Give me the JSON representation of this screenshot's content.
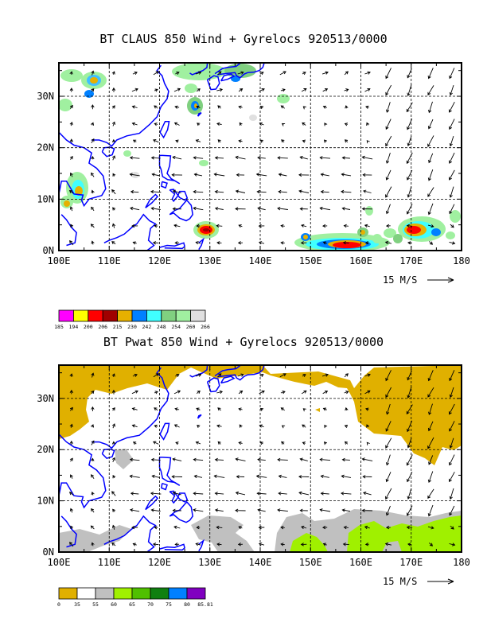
{
  "panels": [
    {
      "id": "top",
      "title": "BT CLAUS 850 Wind + Gyrelocs 920513/0000",
      "lat_labels": [
        "0N",
        "10N",
        "20N",
        "30N"
      ],
      "lon_labels": [
        "100E",
        "110E",
        "120E",
        "130E",
        "140E",
        "150E",
        "160E",
        "170E",
        "180"
      ],
      "reference_vector": "15 M/S",
      "colorbar": {
        "labels": [
          "185",
          "194",
          "200",
          "206",
          "215",
          "230",
          "242",
          "248",
          "254",
          "260",
          "266"
        ],
        "colors": [
          "#ff00ff",
          "#ffff00",
          "#ff0000",
          "#a00000",
          "#e6b000",
          "#0080ff",
          "#40ffff",
          "#80d080",
          "#a0f0a0",
          "#e0e0e0"
        ]
      }
    },
    {
      "id": "bottom",
      "title": "BT Pwat 850 Wind + Gyrelocs 920513/0000",
      "lat_labels": [
        "0N",
        "10N",
        "20N",
        "30N"
      ],
      "lon_labels": [
        "100E",
        "110E",
        "120E",
        "130E",
        "140E",
        "150E",
        "160E",
        "170E",
        "180"
      ],
      "reference_vector": "15 M/S",
      "colorbar": {
        "labels": [
          "0",
          "35",
          "55",
          "60",
          "65",
          "70",
          "75",
          "80",
          "85.81"
        ],
        "colors": [
          "#e0b000",
          "#ffffff",
          "#c0c0c0",
          "#a0f000",
          "#50c000",
          "#108010",
          "#0080ff",
          "#8000c0"
        ]
      }
    }
  ]
}
